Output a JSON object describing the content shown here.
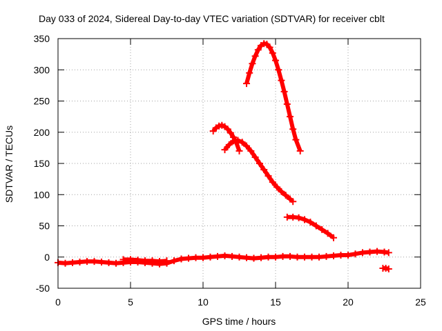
{
  "chart_data": {
    "type": "scatter",
    "title": "Day 033 of 2024, Sidereal Day-to-day VTEC variation (SDTVAR) for receiver cblt",
    "xlabel": "GPS time / hours",
    "ylabel": "SDTVAR / TECUs",
    "xlim": [
      0,
      25
    ],
    "ylim": [
      -50,
      350
    ],
    "xticks": [
      0,
      5,
      10,
      15,
      20,
      25
    ],
    "yticks": [
      -50,
      0,
      50,
      100,
      150,
      200,
      250,
      300,
      350
    ],
    "xtick_labels": [
      "0",
      "5",
      "10",
      "15",
      "20",
      "25"
    ],
    "ytick_labels": [
      "-50",
      "0",
      "50",
      "100",
      "150",
      "200",
      "250",
      "300",
      "350"
    ],
    "grid": true,
    "legend": "none",
    "marker_color": "#ff0000",
    "series": [
      {
        "name": "baseline",
        "x": [
          0,
          0.5,
          1,
          1.5,
          2,
          2.5,
          3,
          3.5,
          4,
          4.5,
          5,
          5.5,
          6,
          6.5,
          7,
          7.5,
          8,
          8.5,
          9,
          9.5,
          10,
          10.5,
          11,
          11.5,
          12,
          12.5,
          13,
          13.5,
          14,
          14.5,
          15,
          15.5,
          16,
          16.5,
          17,
          17.5,
          18,
          18.5,
          19,
          19.5,
          20,
          20.5,
          21,
          21.5,
          22,
          22.5,
          22.8
        ],
        "y": [
          -9,
          -10,
          -9,
          -8,
          -7,
          -7,
          -8,
          -9,
          -10,
          -9,
          -8,
          -8,
          -9,
          -10,
          -11,
          -10,
          -6,
          -3,
          -2,
          -1,
          -1,
          0,
          1,
          2,
          1,
          0,
          -1,
          -2,
          -1,
          0,
          0,
          1,
          1,
          0,
          0,
          0,
          0,
          1,
          2,
          3,
          3,
          5,
          7,
          8,
          9,
          8,
          7
        ]
      },
      {
        "name": "baseline-spread",
        "x": [
          4.5,
          5,
          5.5,
          6,
          6.5,
          7,
          7.5
        ],
        "y": [
          -4,
          -4,
          -5,
          -6,
          -6,
          -7,
          -6
        ]
      },
      {
        "name": "tail",
        "x": [
          22.4,
          22.6,
          22.8
        ],
        "y": [
          -18,
          -18,
          -19
        ]
      },
      {
        "name": "arc-1",
        "x": [
          10.7,
          10.9,
          11.1,
          11.3,
          11.5,
          11.7,
          11.9,
          12.1,
          12.3,
          12.5
        ],
        "y": [
          202,
          207,
          210,
          211,
          209,
          205,
          199,
          192,
          183,
          170
        ]
      },
      {
        "name": "arc-2",
        "x": [
          11.5,
          11.8,
          12.1,
          12.4,
          12.7,
          13.0,
          13.3,
          13.6,
          13.9,
          14.2,
          14.5,
          14.8,
          15.1,
          15.4,
          15.7,
          16.0,
          16.2
        ],
        "y": [
          172,
          180,
          186,
          187,
          184,
          178,
          170,
          160,
          150,
          140,
          130,
          120,
          112,
          105,
          99,
          93,
          89
        ]
      },
      {
        "name": "arc-3",
        "x": [
          13.0,
          13.2,
          13.4,
          13.6,
          13.8,
          14.0,
          14.2,
          14.4,
          14.6,
          14.8,
          15.0,
          15.2,
          15.4,
          15.6,
          15.8,
          16.0,
          16.2,
          16.4,
          16.7
        ],
        "y": [
          278,
          295,
          310,
          322,
          332,
          339,
          342,
          341,
          336,
          327,
          315,
          300,
          283,
          265,
          245,
          225,
          205,
          188,
          170
        ]
      },
      {
        "name": "arc-4",
        "x": [
          15.8,
          16.2,
          16.6,
          17.0,
          17.4,
          17.8,
          18.2,
          18.6,
          19.0
        ],
        "y": [
          64,
          64,
          63,
          60,
          56,
          50,
          44,
          38,
          31
        ]
      }
    ]
  }
}
